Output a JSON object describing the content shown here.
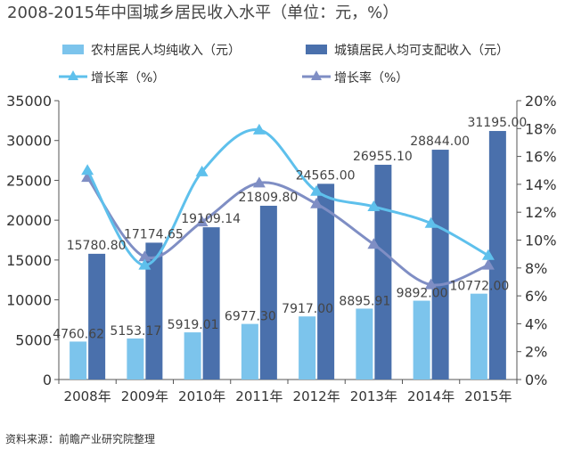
{
  "chart_data": {
    "type": "bar",
    "title": "2008-2015年中国城乡居民收入水平（单位：元，%）",
    "categories": [
      "2008年",
      "2009年",
      "2010年",
      "2011年",
      "2012年",
      "2013年",
      "2014年",
      "2015年"
    ],
    "series": [
      {
        "name": "农村居民人均纯收入（元）",
        "kind": "bar",
        "axis": "left",
        "values": [
          4760.62,
          5153.17,
          5919.01,
          6977.3,
          7917.0,
          8895.91,
          9892.0,
          10772.0
        ],
        "labels": [
          "4760.62",
          "5153.17",
          "5919.01",
          "6977.30",
          "7917.00",
          "8895.91",
          "9892.00",
          "10772.00"
        ]
      },
      {
        "name": "城镇居民人均可支配收入（元）",
        "kind": "bar",
        "axis": "left",
        "values": [
          15780.8,
          17174.65,
          19109.14,
          21809.8,
          24565.0,
          26955.1,
          28844.0,
          31195.0
        ],
        "labels": [
          "15780.80",
          "17174.65",
          "19109.14",
          "21809.80",
          "24565.00",
          "26955.10",
          "28844.00",
          "31195.00"
        ]
      },
      {
        "name": "增长率（%）",
        "kind": "line",
        "axis": "right",
        "values": [
          15.0,
          8.2,
          14.9,
          17.9,
          13.5,
          12.4,
          11.2,
          8.9
        ]
      },
      {
        "name": "增长率（%）",
        "kind": "line",
        "axis": "right",
        "values": [
          14.5,
          8.8,
          11.3,
          14.1,
          12.6,
          9.7,
          6.8,
          8.2
        ]
      }
    ],
    "ylim_left": [
      0,
      35000
    ],
    "yticks_left": [
      "0",
      "5000",
      "10000",
      "15000",
      "20000",
      "25000",
      "30000",
      "35000"
    ],
    "ylim_right": [
      0,
      20
    ],
    "yticks_right": [
      "0%",
      "2%",
      "4%",
      "6%",
      "8%",
      "10%",
      "12%",
      "14%",
      "16%",
      "18%",
      "20%"
    ],
    "legend_position": "top",
    "source": "资料来源：前瞻产业研究院整理"
  },
  "colors": {
    "rural_bar": "#7cc4ec",
    "urban_bar": "#4a70ac",
    "rural_line": "#5ec0ec",
    "urban_line": "#7f8ec4",
    "axis": "#555555",
    "text": "#333333"
  }
}
